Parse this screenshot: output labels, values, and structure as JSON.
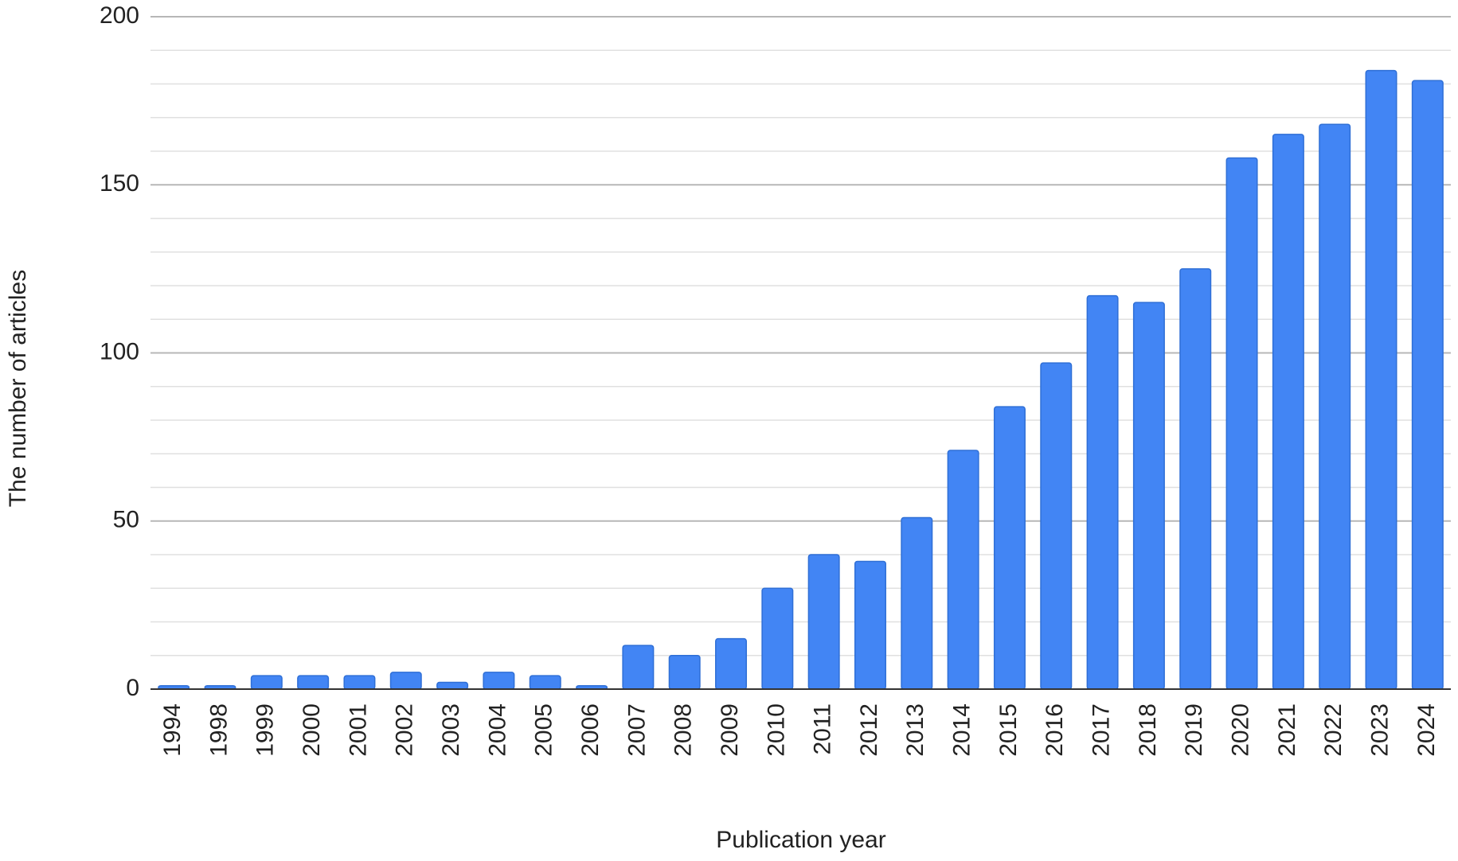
{
  "chart_data": {
    "type": "bar",
    "x_label": "Publication year",
    "y_label": "The number of articles",
    "categories": [
      "1994",
      "1998",
      "1999",
      "2000",
      "2001",
      "2002",
      "2003",
      "2004",
      "2005",
      "2006",
      "2007",
      "2008",
      "2009",
      "2010",
      "2011",
      "2012",
      "2013",
      "2014",
      "2015",
      "2016",
      "2017",
      "2018",
      "2019",
      "2020",
      "2021",
      "2022",
      "2023",
      "2024"
    ],
    "values": [
      1,
      1,
      4,
      4,
      4,
      5,
      2,
      5,
      4,
      1,
      13,
      10,
      15,
      30,
      40,
      38,
      51,
      71,
      84,
      97,
      117,
      115,
      125,
      158,
      165,
      168,
      184,
      181
    ],
    "color": "#4285f4",
    "ylim": [
      0,
      200
    ],
    "yticks": [
      0,
      50,
      100,
      150,
      200
    ],
    "minor_grid": [
      10,
      20,
      30,
      40,
      60,
      70,
      80,
      90,
      110,
      120,
      130,
      140,
      160,
      170,
      180,
      190
    ],
    "grid": true
  }
}
